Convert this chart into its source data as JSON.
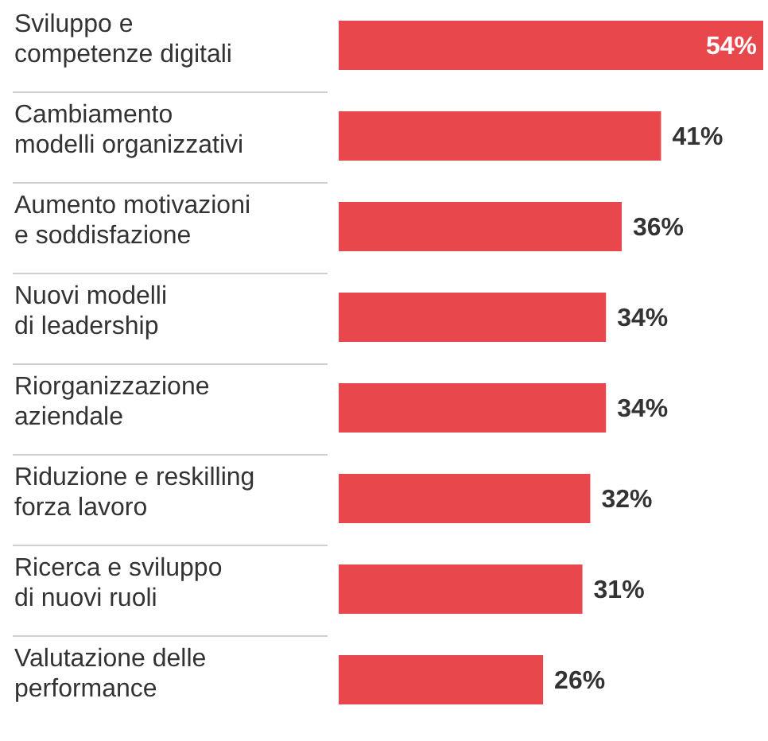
{
  "chart_data": {
    "type": "bar",
    "orientation": "horizontal",
    "categories": [
      "Sviluppo e\ncompetenze digitali",
      "Cambiamento\nmodelli organizzativi",
      "Aumento motivazioni\ne soddisfazione",
      "Nuovi modelli\ndi leadership",
      "Riorganizzazione\naziendale",
      "Riduzione e reskilling\nforza lavoro",
      "Ricerca e sviluppo\ndi nuovi ruoli",
      "Valutazione delle\nperformance"
    ],
    "values": [
      54,
      41,
      36,
      34,
      34,
      32,
      31,
      26
    ],
    "value_labels": [
      "54%",
      "41%",
      "36%",
      "34%",
      "34%",
      "32%",
      "31%",
      "26%"
    ],
    "color": "#e8474c"
  }
}
